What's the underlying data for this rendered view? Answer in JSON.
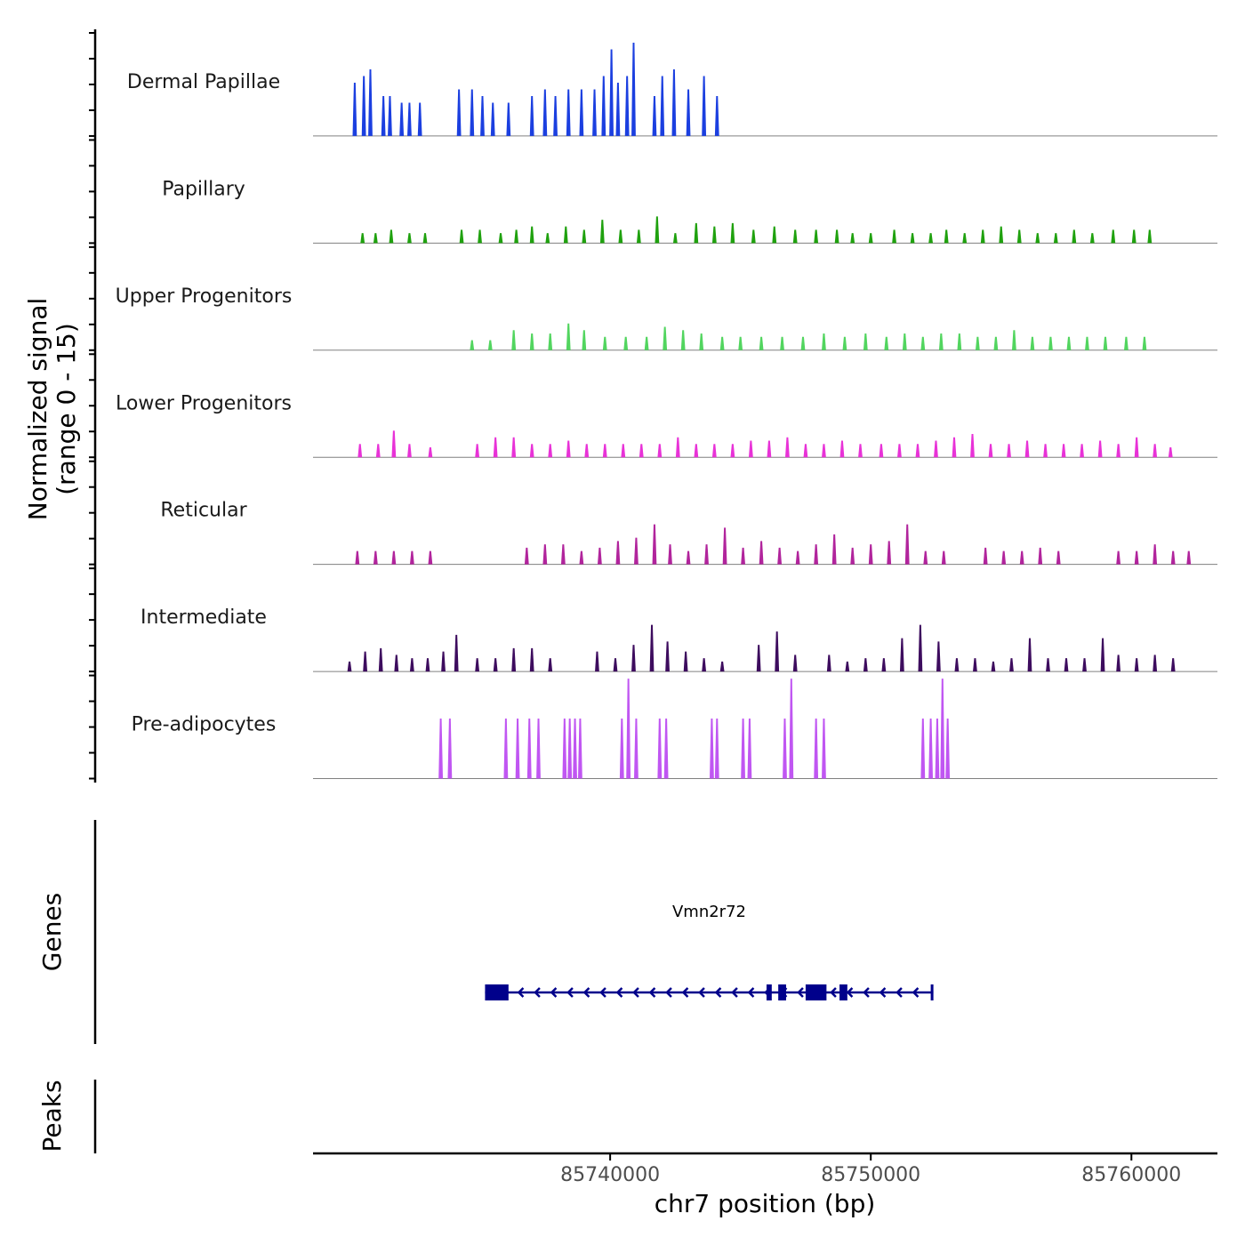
{
  "chart_data": {
    "type": "coverage",
    "chromosome": "chr7",
    "xlim": [
      85728600,
      85763300
    ],
    "ylim": [
      0,
      15
    ],
    "y_axis_title_line1": "Normalized signal",
    "y_axis_title_line2": "(range 0 - 15)",
    "x_axis_title": "chr7 position (bp)",
    "x_ticks": [
      {
        "value": 85740000,
        "label": "85740000"
      },
      {
        "value": 85750000,
        "label": "85750000"
      },
      {
        "value": 85760000,
        "label": "85760000"
      }
    ],
    "tracks": [
      {
        "name": "Dermal Papillae",
        "color": "#1B3FE0",
        "peaks": [
          [
            85730200,
            8
          ],
          [
            85730550,
            9
          ],
          [
            85730800,
            10
          ],
          [
            85731300,
            6
          ],
          [
            85731550,
            6
          ],
          [
            85732000,
            5
          ],
          [
            85732300,
            5
          ],
          [
            85732700,
            5
          ],
          [
            85734200,
            7
          ],
          [
            85734700,
            7
          ],
          [
            85735100,
            6
          ],
          [
            85735500,
            5
          ],
          [
            85736100,
            5
          ],
          [
            85737000,
            6
          ],
          [
            85737500,
            7
          ],
          [
            85737900,
            6
          ],
          [
            85738400,
            7
          ],
          [
            85738900,
            7
          ],
          [
            85739400,
            7
          ],
          [
            85739750,
            9
          ],
          [
            85740050,
            13
          ],
          [
            85740300,
            8
          ],
          [
            85740650,
            9
          ],
          [
            85740900,
            14
          ],
          [
            85741700,
            6
          ],
          [
            85742000,
            9
          ],
          [
            85742450,
            10
          ],
          [
            85743000,
            7
          ],
          [
            85743600,
            9
          ],
          [
            85744100,
            6
          ]
        ]
      },
      {
        "name": "Papillary",
        "color": "#1FA10E",
        "peaks": [
          [
            85730500,
            1.5
          ],
          [
            85731000,
            1.5
          ],
          [
            85731600,
            2
          ],
          [
            85732300,
            1.5
          ],
          [
            85732900,
            1.5
          ],
          [
            85734300,
            2
          ],
          [
            85735000,
            2
          ],
          [
            85735800,
            1.5
          ],
          [
            85736400,
            2
          ],
          [
            85737000,
            2.5
          ],
          [
            85737600,
            1.5
          ],
          [
            85738300,
            2.5
          ],
          [
            85739000,
            2
          ],
          [
            85739700,
            3.5
          ],
          [
            85740400,
            2
          ],
          [
            85741100,
            2
          ],
          [
            85741800,
            4
          ],
          [
            85742500,
            1.5
          ],
          [
            85743300,
            3
          ],
          [
            85744000,
            2.5
          ],
          [
            85744700,
            3
          ],
          [
            85745500,
            2
          ],
          [
            85746300,
            2.5
          ],
          [
            85747100,
            2
          ],
          [
            85747900,
            2
          ],
          [
            85748700,
            2
          ],
          [
            85749300,
            1.5
          ],
          [
            85750000,
            1.5
          ],
          [
            85750900,
            2
          ],
          [
            85751600,
            1.5
          ],
          [
            85752300,
            1.5
          ],
          [
            85752900,
            2
          ],
          [
            85753600,
            1.5
          ],
          [
            85754300,
            2
          ],
          [
            85755000,
            2.5
          ],
          [
            85755700,
            2
          ],
          [
            85756400,
            1.5
          ],
          [
            85757100,
            1.5
          ],
          [
            85757800,
            2
          ],
          [
            85758500,
            1.5
          ],
          [
            85759300,
            2
          ],
          [
            85760100,
            2
          ],
          [
            85760700,
            2
          ]
        ]
      },
      {
        "name": "Upper Progenitors",
        "color": "#52D55F",
        "peaks": [
          [
            85734700,
            1.5
          ],
          [
            85735400,
            1.5
          ],
          [
            85736300,
            3
          ],
          [
            85737000,
            2.5
          ],
          [
            85737700,
            2.5
          ],
          [
            85738400,
            4
          ],
          [
            85739000,
            3
          ],
          [
            85739800,
            2
          ],
          [
            85740600,
            2
          ],
          [
            85741400,
            2
          ],
          [
            85742100,
            3.5
          ],
          [
            85742800,
            3
          ],
          [
            85743500,
            2.5
          ],
          [
            85744300,
            2
          ],
          [
            85745000,
            2
          ],
          [
            85745800,
            2
          ],
          [
            85746600,
            2
          ],
          [
            85747400,
            2
          ],
          [
            85748200,
            2.5
          ],
          [
            85749000,
            2
          ],
          [
            85749800,
            2.5
          ],
          [
            85750600,
            2
          ],
          [
            85751300,
            2.5
          ],
          [
            85752000,
            2
          ],
          [
            85752700,
            2.5
          ],
          [
            85753400,
            2.5
          ],
          [
            85754100,
            2
          ],
          [
            85754800,
            2
          ],
          [
            85755500,
            3
          ],
          [
            85756200,
            2
          ],
          [
            85756900,
            2
          ],
          [
            85757600,
            2
          ],
          [
            85758300,
            2
          ],
          [
            85759000,
            2
          ],
          [
            85759800,
            2
          ],
          [
            85760500,
            2
          ]
        ]
      },
      {
        "name": "Lower Progenitors",
        "color": "#E832D7",
        "peaks": [
          [
            85730400,
            2
          ],
          [
            85731100,
            2
          ],
          [
            85731700,
            4
          ],
          [
            85732300,
            2
          ],
          [
            85733100,
            1.5
          ],
          [
            85734900,
            2
          ],
          [
            85735600,
            3
          ],
          [
            85736300,
            3
          ],
          [
            85737000,
            2
          ],
          [
            85737700,
            2
          ],
          [
            85738400,
            2.5
          ],
          [
            85739100,
            2
          ],
          [
            85739800,
            2
          ],
          [
            85740500,
            2
          ],
          [
            85741200,
            2
          ],
          [
            85741900,
            2
          ],
          [
            85742600,
            3
          ],
          [
            85743300,
            2
          ],
          [
            85744000,
            2
          ],
          [
            85744700,
            2
          ],
          [
            85745400,
            2.5
          ],
          [
            85746100,
            2.5
          ],
          [
            85746800,
            3
          ],
          [
            85747500,
            2
          ],
          [
            85748200,
            2
          ],
          [
            85748900,
            2.5
          ],
          [
            85749600,
            2
          ],
          [
            85750400,
            2
          ],
          [
            85751100,
            2
          ],
          [
            85751800,
            2
          ],
          [
            85752500,
            2.5
          ],
          [
            85753200,
            3
          ],
          [
            85753900,
            3.5
          ],
          [
            85754600,
            2
          ],
          [
            85755300,
            2
          ],
          [
            85756000,
            2.5
          ],
          [
            85756700,
            2
          ],
          [
            85757400,
            2
          ],
          [
            85758100,
            2
          ],
          [
            85758800,
            2.5
          ],
          [
            85759500,
            2
          ],
          [
            85760200,
            3
          ],
          [
            85760900,
            2
          ],
          [
            85761500,
            1.5
          ]
        ]
      },
      {
        "name": "Reticular",
        "color": "#B1249C",
        "peaks": [
          [
            85730300,
            2
          ],
          [
            85731000,
            2
          ],
          [
            85731700,
            2
          ],
          [
            85732400,
            2
          ],
          [
            85733100,
            2
          ],
          [
            85736800,
            2.5
          ],
          [
            85737500,
            3
          ],
          [
            85738200,
            3
          ],
          [
            85738900,
            2
          ],
          [
            85739600,
            2.5
          ],
          [
            85740300,
            3.5
          ],
          [
            85741000,
            4
          ],
          [
            85741700,
            6
          ],
          [
            85742300,
            3
          ],
          [
            85743000,
            2
          ],
          [
            85743700,
            3
          ],
          [
            85744400,
            5.5
          ],
          [
            85745100,
            2.5
          ],
          [
            85745800,
            3.5
          ],
          [
            85746500,
            2.5
          ],
          [
            85747200,
            2
          ],
          [
            85747900,
            3
          ],
          [
            85748600,
            4.5
          ],
          [
            85749300,
            2.5
          ],
          [
            85750000,
            3
          ],
          [
            85750700,
            3.5
          ],
          [
            85751400,
            6
          ],
          [
            85752100,
            2
          ],
          [
            85752800,
            2
          ],
          [
            85754400,
            2.5
          ],
          [
            85755100,
            2
          ],
          [
            85755800,
            2
          ],
          [
            85756500,
            2.5
          ],
          [
            85757200,
            2
          ],
          [
            85759500,
            2
          ],
          [
            85760200,
            2
          ],
          [
            85760900,
            3
          ],
          [
            85761600,
            2
          ],
          [
            85762200,
            2
          ]
        ]
      },
      {
        "name": "Intermediate",
        "color": "#3D0C5E",
        "peaks": [
          [
            85730000,
            1.5
          ],
          [
            85730600,
            3
          ],
          [
            85731200,
            3.5
          ],
          [
            85731800,
            2.5
          ],
          [
            85732400,
            2
          ],
          [
            85733000,
            2
          ],
          [
            85733600,
            3
          ],
          [
            85734100,
            5.5
          ],
          [
            85734900,
            2
          ],
          [
            85735600,
            2
          ],
          [
            85736300,
            3.5
          ],
          [
            85737000,
            3.5
          ],
          [
            85737700,
            2
          ],
          [
            85739500,
            3
          ],
          [
            85740200,
            2
          ],
          [
            85740900,
            4
          ],
          [
            85741600,
            7
          ],
          [
            85742200,
            4.5
          ],
          [
            85742900,
            3
          ],
          [
            85743600,
            2
          ],
          [
            85744300,
            1.5
          ],
          [
            85745700,
            4
          ],
          [
            85746400,
            6
          ],
          [
            85747100,
            2.5
          ],
          [
            85748400,
            2.5
          ],
          [
            85749100,
            1.5
          ],
          [
            85749800,
            2
          ],
          [
            85750500,
            2
          ],
          [
            85751200,
            5
          ],
          [
            85751900,
            7
          ],
          [
            85752600,
            4.5
          ],
          [
            85753300,
            2
          ],
          [
            85754000,
            2
          ],
          [
            85754700,
            1.5
          ],
          [
            85755400,
            2
          ],
          [
            85756100,
            5
          ],
          [
            85756800,
            2
          ],
          [
            85757500,
            2
          ],
          [
            85758200,
            2
          ],
          [
            85758900,
            5
          ],
          [
            85759500,
            2.5
          ],
          [
            85760200,
            2
          ],
          [
            85760900,
            2.5
          ],
          [
            85761600,
            2
          ]
        ]
      },
      {
        "name": "Pre-adipocytes",
        "color": "#C056F2",
        "peaks": [
          [
            85733500,
            9
          ],
          [
            85733850,
            9
          ],
          [
            85736000,
            9
          ],
          [
            85736450,
            9
          ],
          [
            85736900,
            9
          ],
          [
            85737250,
            9
          ],
          [
            85738250,
            9
          ],
          [
            85738450,
            9
          ],
          [
            85738650,
            9
          ],
          [
            85738850,
            9
          ],
          [
            85740450,
            9
          ],
          [
            85740700,
            15
          ],
          [
            85741000,
            9
          ],
          [
            85741900,
            9
          ],
          [
            85742150,
            9
          ],
          [
            85743900,
            9
          ],
          [
            85744100,
            9
          ],
          [
            85745100,
            9
          ],
          [
            85745350,
            9
          ],
          [
            85746700,
            9
          ],
          [
            85746950,
            15
          ],
          [
            85747900,
            9
          ],
          [
            85748200,
            9
          ],
          [
            85752000,
            9
          ],
          [
            85752300,
            9
          ],
          [
            85752550,
            9
          ],
          [
            85752750,
            15
          ],
          [
            85752950,
            9
          ]
        ]
      }
    ],
    "genes": [
      {
        "name": "Vmn2r72",
        "strand": "-",
        "start": 85735200,
        "end": 85752400,
        "exons": [
          [
            85735200,
            85736100
          ],
          [
            85746000,
            85746200
          ],
          [
            85746450,
            85746750
          ],
          [
            85747500,
            85748300
          ],
          [
            85748800,
            85749100
          ],
          [
            85752300,
            85752400
          ]
        ]
      }
    ],
    "genes_title": "Genes",
    "peaks_title": "Peaks",
    "gene_color": "#00008B",
    "axis_color": "#000000",
    "baseline_color": "#808080"
  }
}
